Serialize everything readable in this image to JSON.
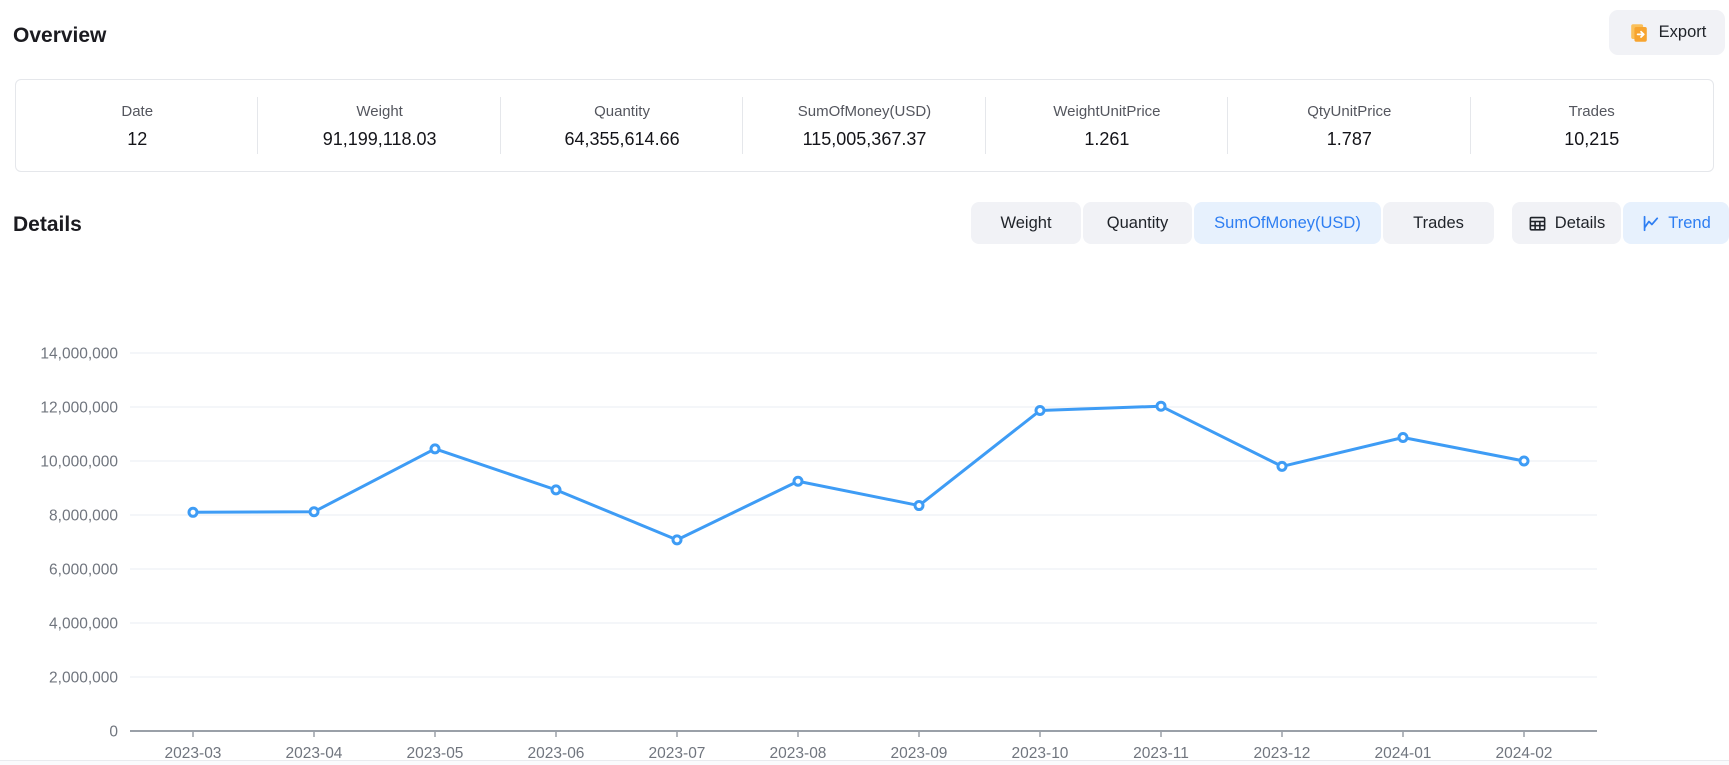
{
  "page": {
    "overview_title": "Overview",
    "details_title": "Details"
  },
  "export_button": {
    "label": "Export",
    "icon": "export-file-icon"
  },
  "stats": {
    "items": [
      {
        "label": "Date",
        "value": "12"
      },
      {
        "label": "Weight",
        "value": "91,199,118.03"
      },
      {
        "label": "Quantity",
        "value": "64,355,614.66"
      },
      {
        "label": "SumOfMoney(USD)",
        "value": "115,005,367.37"
      },
      {
        "label": "WeightUnitPrice",
        "value": "1.261"
      },
      {
        "label": "QtyUnitPrice",
        "value": "1.787"
      },
      {
        "label": "Trades",
        "value": "10,215"
      }
    ]
  },
  "metric_tabs": {
    "items": [
      {
        "label": "Weight",
        "active": false
      },
      {
        "label": "Quantity",
        "active": false
      },
      {
        "label": "SumOfMoney(USD)",
        "active": true
      },
      {
        "label": "Trades",
        "active": false
      }
    ]
  },
  "view_toggle": {
    "items": [
      {
        "label": "Details",
        "icon": "table-icon",
        "active": false
      },
      {
        "label": "Trend",
        "icon": "line-chart-icon",
        "active": true
      }
    ]
  },
  "colors": {
    "accent_blue": "#2e7ef2",
    "line_blue": "#3e9cf5",
    "tab_bg": "#f1f2f6",
    "tab_active_bg": "#e7f1fd",
    "export_icon_orange": "#f7a42f",
    "export_icon_orange_light": "#fac05a",
    "axis_label": "#70757e",
    "grid_line": "#e9ecf3",
    "axis_line": "#9aa0a8"
  },
  "chart_data": {
    "type": "line",
    "title": "",
    "xlabel": "",
    "ylabel": "",
    "legend": "none",
    "grid": true,
    "ylim": [
      0,
      14000000
    ],
    "x": [
      "2023-03",
      "2023-04",
      "2023-05",
      "2023-06",
      "2023-07",
      "2023-08",
      "2023-09",
      "2023-10",
      "2023-11",
      "2023-12",
      "2024-01",
      "2024-02"
    ],
    "series": [
      {
        "name": "SumOfMoney(USD)",
        "values": [
          8100000,
          8120000,
          10450000,
          8930000,
          7080000,
          9250000,
          8350000,
          11870000,
          12030000,
          9800000,
          10870000,
          10000000
        ]
      }
    ],
    "yticks": [
      {
        "value": 0,
        "label": "0"
      },
      {
        "value": 2000000,
        "label": "2,000,000"
      },
      {
        "value": 4000000,
        "label": "4,000,000"
      },
      {
        "value": 6000000,
        "label": "6,000,000"
      },
      {
        "value": 8000000,
        "label": "8,000,000"
      },
      {
        "value": 10000000,
        "label": "10,000,000"
      },
      {
        "value": 12000000,
        "label": "12,000,000"
      },
      {
        "value": 14000000,
        "label": "14,000,000"
      }
    ]
  }
}
